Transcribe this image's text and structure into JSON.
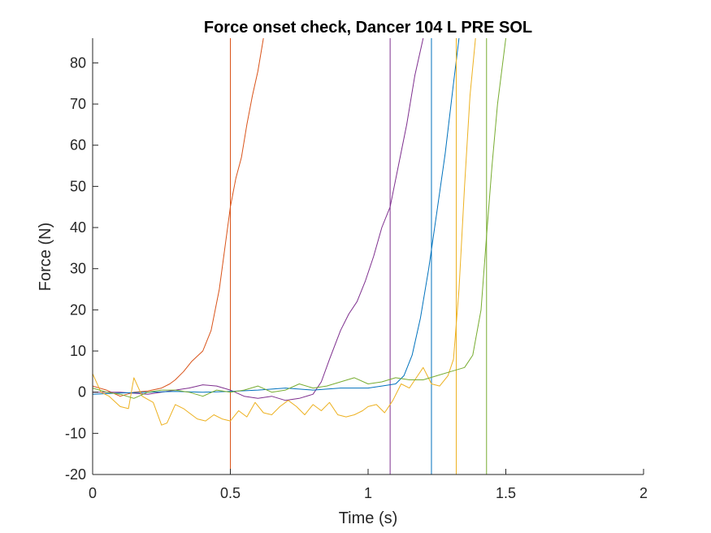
{
  "chart_data": {
    "type": "line",
    "title": "Force onset check, Dancer 104 L PRE SOL",
    "xlabel": "Time (s)",
    "ylabel": "Force (N)",
    "xlim": [
      0,
      2
    ],
    "ylim": [
      -20,
      86
    ],
    "xticks": [
      0,
      0.5,
      1,
      1.5,
      2
    ],
    "xtick_labels": [
      "0",
      "0.5",
      "1",
      "1.5",
      "2"
    ],
    "yticks": [
      -20,
      -10,
      0,
      10,
      20,
      30,
      40,
      50,
      60,
      70,
      80
    ],
    "ytick_labels": [
      "-20",
      "-10",
      "0",
      "10",
      "20",
      "30",
      "40",
      "50",
      "60",
      "70",
      "80"
    ],
    "grid": false,
    "legend": "none",
    "series": [
      {
        "color": "#D95319",
        "onset": 0.5,
        "x": [
          0,
          0.05,
          0.1,
          0.15,
          0.2,
          0.25,
          0.28,
          0.3,
          0.33,
          0.36,
          0.4,
          0.43,
          0.46,
          0.48,
          0.5,
          0.52,
          0.54,
          0.56,
          0.58,
          0.6,
          0.62
        ],
        "values": [
          1.5,
          0.5,
          -1.0,
          0.0,
          0.3,
          1.0,
          2.0,
          3.0,
          5.0,
          7.5,
          10.0,
          15.0,
          25.0,
          35.0,
          45.0,
          52.0,
          57.0,
          65.0,
          72.0,
          78.0,
          86.0
        ]
      },
      {
        "color": "#7E2F8E",
        "onset": 1.08,
        "x": [
          0,
          0.1,
          0.2,
          0.3,
          0.35,
          0.4,
          0.45,
          0.5,
          0.55,
          0.6,
          0.65,
          0.7,
          0.75,
          0.8,
          0.83,
          0.86,
          0.9,
          0.93,
          0.96,
          0.99,
          1.02,
          1.05,
          1.08,
          1.11,
          1.14,
          1.17,
          1.2
        ],
        "values": [
          0.0,
          0.0,
          -0.5,
          0.5,
          1.0,
          1.8,
          1.5,
          0.5,
          -1.0,
          -1.5,
          -1.0,
          -2.0,
          -1.5,
          -0.5,
          2.5,
          8.0,
          15.0,
          19.0,
          22.0,
          27.0,
          33.0,
          40.0,
          45.0,
          55.0,
          65.0,
          77.0,
          86.0
        ]
      },
      {
        "color": "#0072BD",
        "onset": 1.23,
        "x": [
          0,
          0.1,
          0.2,
          0.3,
          0.4,
          0.5,
          0.6,
          0.7,
          0.8,
          0.9,
          1.0,
          1.05,
          1.1,
          1.13,
          1.16,
          1.19,
          1.22,
          1.25,
          1.28,
          1.31,
          1.33
        ],
        "values": [
          -0.5,
          -0.2,
          0.0,
          0.2,
          0.0,
          0.2,
          0.5,
          1.0,
          0.5,
          1.0,
          1.0,
          1.5,
          2.0,
          4.0,
          9.0,
          18.0,
          30.0,
          44.0,
          58.0,
          75.0,
          86.0
        ]
      },
      {
        "color": "#EDB120",
        "onset": 1.32,
        "x": [
          0,
          0.03,
          0.06,
          0.1,
          0.13,
          0.15,
          0.18,
          0.22,
          0.25,
          0.27,
          0.3,
          0.33,
          0.35,
          0.38,
          0.41,
          0.44,
          0.47,
          0.5,
          0.53,
          0.56,
          0.59,
          0.62,
          0.65,
          0.68,
          0.71,
          0.74,
          0.77,
          0.8,
          0.83,
          0.86,
          0.89,
          0.92,
          0.95,
          0.98,
          1.0,
          1.03,
          1.06,
          1.09,
          1.12,
          1.15,
          1.18,
          1.2,
          1.23,
          1.26,
          1.29,
          1.31,
          1.33,
          1.35,
          1.37,
          1.39
        ],
        "values": [
          4.5,
          0.0,
          -1.0,
          -3.5,
          -4.0,
          3.5,
          -1.0,
          -2.5,
          -8.0,
          -7.5,
          -3.0,
          -4.0,
          -5.0,
          -6.5,
          -7.0,
          -5.5,
          -6.5,
          -7.0,
          -4.5,
          -6.0,
          -2.5,
          -5.0,
          -5.5,
          -3.5,
          -2.0,
          -3.5,
          -5.5,
          -3.0,
          -4.5,
          -2.5,
          -5.5,
          -6.0,
          -5.5,
          -4.5,
          -3.5,
          -3.0,
          -5.0,
          -2.0,
          2.0,
          1.0,
          4.0,
          6.0,
          2.0,
          1.5,
          4.0,
          8.0,
          25.0,
          50.0,
          72.0,
          86.0
        ]
      },
      {
        "color": "#77AC30",
        "onset": 1.43,
        "x": [
          0,
          0.05,
          0.1,
          0.15,
          0.2,
          0.25,
          0.3,
          0.35,
          0.4,
          0.45,
          0.5,
          0.55,
          0.6,
          0.65,
          0.7,
          0.75,
          0.8,
          0.85,
          0.9,
          0.95,
          1.0,
          1.05,
          1.1,
          1.15,
          1.2,
          1.25,
          1.3,
          1.35,
          1.38,
          1.41,
          1.43,
          1.45,
          1.47,
          1.5
        ],
        "values": [
          1.0,
          0.0,
          -0.5,
          -1.5,
          0.0,
          0.5,
          0.5,
          0.0,
          -1.0,
          0.5,
          0.0,
          0.5,
          1.5,
          0.0,
          0.5,
          2.0,
          1.0,
          1.5,
          2.5,
          3.5,
          2.0,
          2.5,
          3.5,
          3.0,
          3.0,
          4.0,
          5.0,
          6.0,
          9.0,
          20.0,
          38.0,
          55.0,
          70.0,
          86.0
        ]
      }
    ]
  }
}
